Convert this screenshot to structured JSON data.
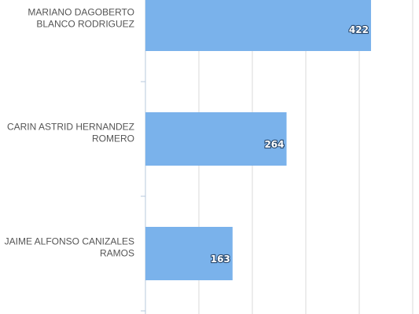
{
  "chart_data": {
    "type": "bar",
    "orientation": "horizontal",
    "categories": [
      [
        "MARIANO DAGOBERTO",
        "BLANCO RODRIGUEZ"
      ],
      [
        "CARIN ASTRID HERNANDEZ",
        "ROMERO"
      ],
      [
        "JAIME ALFONSO CANIZALES",
        "RAMOS"
      ]
    ],
    "values": [
      422,
      264,
      163
    ],
    "data_labels": [
      "422",
      "264",
      "163"
    ],
    "grid": true,
    "bar_color": "#7ab2eb"
  }
}
